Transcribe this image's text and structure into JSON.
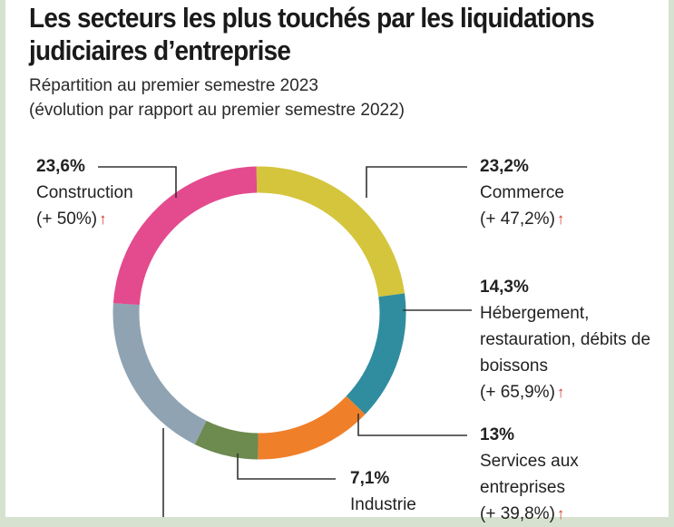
{
  "title": "Les secteurs les plus touchés par les liquidations judiciaires d’entreprise",
  "subtitle_line1": "Répartition au premier semestre 2023",
  "subtitle_line2": "(évolution par rapport au premier semestre 2022)",
  "arrow_symbol": "↑",
  "chart_data": {
    "type": "pie",
    "title": "Les secteurs les plus touchés par les liquidations judiciaires d’entreprise",
    "subtitle": "Répartition au premier semestre 2023 (évolution par rapport au premier semestre 2022)",
    "unit": "%",
    "slices": [
      {
        "label": "Commerce",
        "value": 23.2,
        "display": "23,2%",
        "change": "(+ 47,2%)",
        "color": "#d4c53c"
      },
      {
        "label": "Hébergement, restauration, débits de boissons",
        "value": 14.3,
        "display": "14,3%",
        "change": "(+ 65,9%)",
        "color": "#2f8d9f"
      },
      {
        "label": "Services aux entreprises",
        "value": 13.0,
        "display": "13%",
        "change": "(+ 39,8%)",
        "color": "#f07f2a"
      },
      {
        "label": "Industrie",
        "value": 7.1,
        "display": "7,1%",
        "change": "",
        "color": "#6d8a4f"
      },
      {
        "label": "",
        "value": 18.8,
        "display": "",
        "change": "",
        "color": "#8fa3b2"
      },
      {
        "label": "Construction",
        "value": 23.6,
        "display": "23,6%",
        "change": "(+ 50%)",
        "color": "#e34b8e"
      }
    ]
  }
}
